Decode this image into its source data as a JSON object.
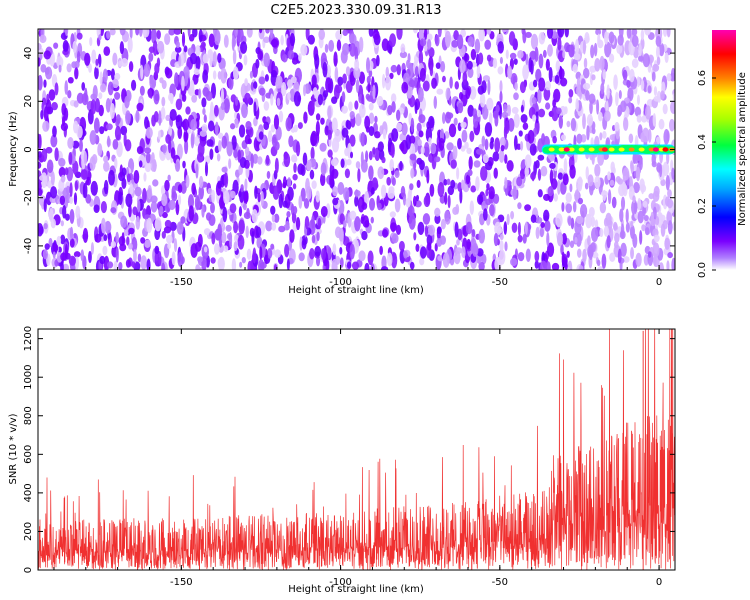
{
  "title": "C2E5.2023.330.09.31.R13",
  "chart_data": [
    {
      "type": "heatmap",
      "xlabel": "Height of straight line (km)",
      "ylabel": "Frequency (Hz)",
      "xlim": [
        -195,
        5
      ],
      "ylim": [
        -50,
        50
      ],
      "xticks": [
        -150,
        -100,
        -50,
        0
      ],
      "yticks": [
        -40,
        -20,
        0,
        20,
        40
      ],
      "colorbar": {
        "label": "Normalized spectral amplitude",
        "range": [
          0,
          0.75
        ],
        "ticks": [
          0.0,
          0.2,
          0.4,
          0.6
        ],
        "colormap": [
          "#ffffff",
          "#7a00ff",
          "#0000ff",
          "#00ffff",
          "#00ff00",
          "#ffff00",
          "#ff8000",
          "#ff0000",
          "#ff00b0"
        ]
      },
      "signal": {
        "x_range": [
          -35,
          5
        ],
        "frequency": 0,
        "peak_amplitude": 0.75
      },
      "grid": false
    },
    {
      "type": "line",
      "xlabel": "Height of straight line (km)",
      "ylabel": "SNR (10 * v/v)",
      "xlim": [
        -195,
        5
      ],
      "ylim": [
        0,
        1250
      ],
      "xticks": [
        -150,
        -100,
        -50,
        0
      ],
      "yticks": [
        0,
        200,
        400,
        600,
        800,
        1000,
        1200
      ],
      "color": "#f03030",
      "envelope": [
        {
          "x": -195,
          "y": 240
        },
        {
          "x": -150,
          "y": 250
        },
        {
          "x": -100,
          "y": 275
        },
        {
          "x": -60,
          "y": 330
        },
        {
          "x": -36,
          "y": 380
        },
        {
          "x": -33,
          "y": 560
        },
        {
          "x": -20,
          "y": 600
        },
        {
          "x": -10,
          "y": 700
        },
        {
          "x": 0,
          "y": 750
        },
        {
          "x": 5,
          "y": 760
        }
      ],
      "max_spike": {
        "x": -5,
        "y": 1240
      },
      "grid": false
    }
  ]
}
